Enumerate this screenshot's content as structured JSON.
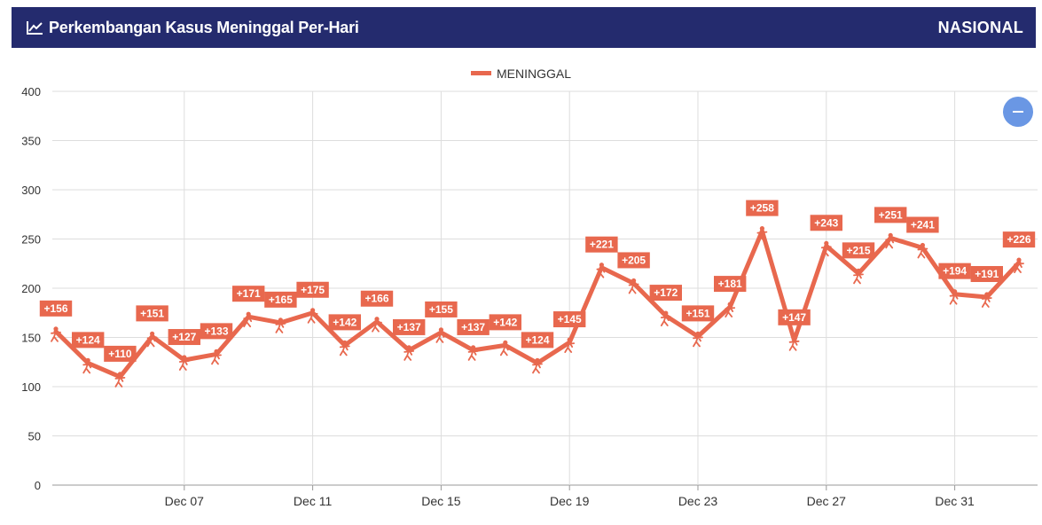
{
  "header": {
    "title": "Perkembangan Kasus Meninggal Per-Hari",
    "region": "NASIONAL",
    "icon": "line-chart-icon"
  },
  "zoom_control": {
    "icon": "minus-icon"
  },
  "colors": {
    "header_bg": "#242b6e",
    "series": "#e8684e",
    "grid": "#dddddd",
    "zoom": "#6a97e4"
  },
  "chart_data": {
    "type": "line",
    "title": "",
    "xlabel": "",
    "ylabel": "",
    "ylim": [
      0,
      400
    ],
    "yticks": [
      0,
      50,
      100,
      150,
      200,
      250,
      300,
      350,
      400
    ],
    "grid": true,
    "legend_position": "top-center",
    "x": [
      "Dec 03",
      "Dec 04",
      "Dec 05",
      "Dec 06",
      "Dec 07",
      "Dec 08",
      "Dec 09",
      "Dec 10",
      "Dec 11",
      "Dec 12",
      "Dec 13",
      "Dec 14",
      "Dec 15",
      "Dec 16",
      "Dec 17",
      "Dec 18",
      "Dec 19",
      "Dec 20",
      "Dec 21",
      "Dec 22",
      "Dec 23",
      "Dec 24",
      "Dec 25",
      "Dec 26",
      "Dec 27",
      "Dec 28",
      "Dec 29",
      "Dec 30",
      "Dec 31",
      "Jan 01",
      "Jan 02"
    ],
    "x_tick_labels": [
      "Dec 07",
      "Dec 11",
      "Dec 15",
      "Dec 19",
      "Dec 23",
      "Dec 27",
      "Dec 31"
    ],
    "series": [
      {
        "name": "MENINGGAL",
        "color": "#e8684e",
        "values": [
          156,
          124,
          110,
          151,
          127,
          133,
          171,
          165,
          175,
          142,
          166,
          137,
          155,
          137,
          142,
          124,
          145,
          221,
          205,
          172,
          151,
          181,
          258,
          147,
          243,
          215,
          251,
          241,
          194,
          191,
          226
        ],
        "labels": [
          "+156",
          "+124",
          "+110",
          "+151",
          "+127",
          "+133",
          "+171",
          "+165",
          "+175",
          "+142",
          "+166",
          "+137",
          "+155",
          "+137",
          "+142",
          "+124",
          "+145",
          "+221",
          "+205",
          "+172",
          "+151",
          "+181",
          "+258",
          "+147",
          "+243",
          "+215",
          "+251",
          "+241",
          "+194",
          "+191",
          "+226"
        ]
      }
    ]
  }
}
